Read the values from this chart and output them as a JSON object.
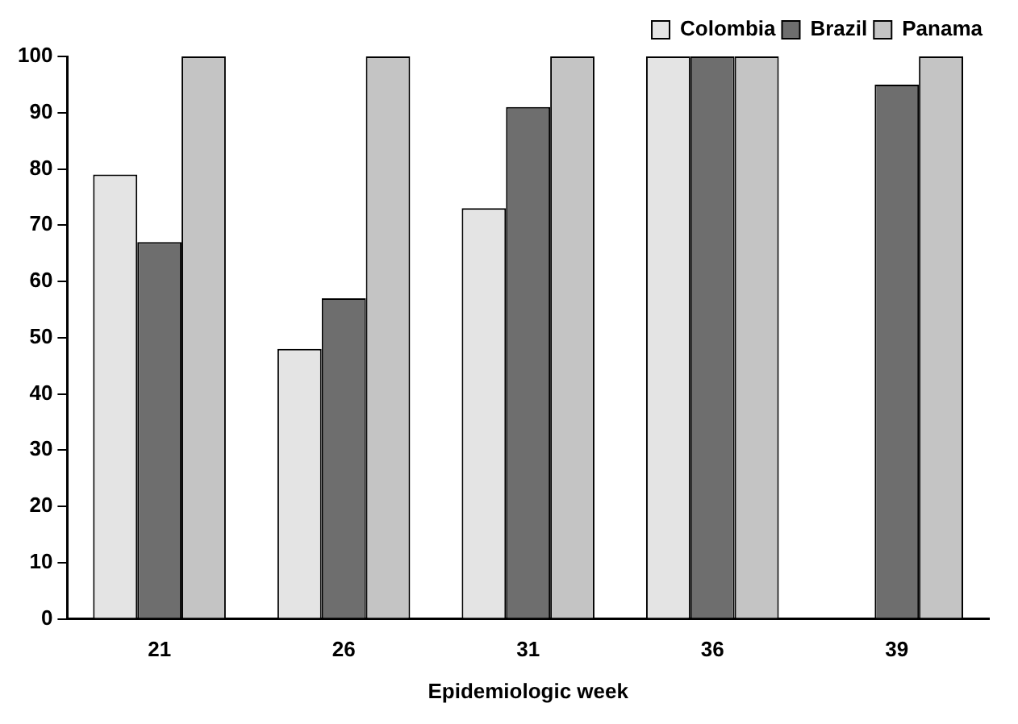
{
  "chart_data": {
    "type": "bar",
    "xlabel": "Epidemiologic week",
    "categories": [
      "21",
      "26",
      "31",
      "36",
      "39"
    ],
    "series": [
      {
        "name": "Colombia",
        "color": "#e4e4e4",
        "values": [
          79,
          48,
          73,
          100,
          null
        ]
      },
      {
        "name": "Brazil",
        "color": "#6e6e6e",
        "values": [
          67,
          57,
          91,
          100,
          95
        ]
      },
      {
        "name": "Panama",
        "color": "#c4c4c4",
        "values": [
          100,
          100,
          100,
          100,
          100
        ]
      }
    ],
    "ylim": [
      0,
      100
    ],
    "yticks": [
      0,
      10,
      20,
      30,
      40,
      50,
      60,
      70,
      80,
      90,
      100
    ],
    "grid": false,
    "legend": "top right"
  }
}
